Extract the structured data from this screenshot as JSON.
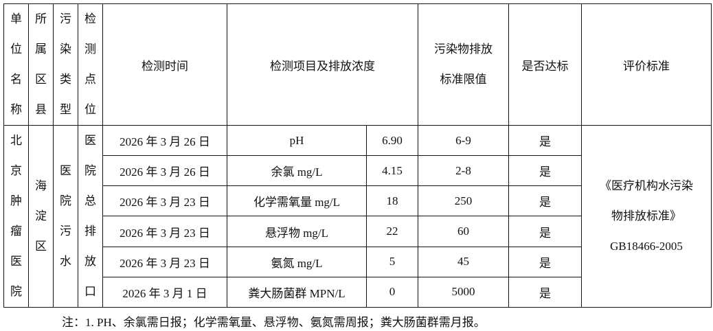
{
  "header": {
    "unit_name": "单位名称",
    "district": "所属区县",
    "pollution_type": "污染类型",
    "monitor_point": "检测点位",
    "time": "检测时间",
    "item_concentration": "检测项目及排放浓度",
    "limit": "污染物排放标准限值",
    "compliant": "是否达标",
    "standard": "评价标准"
  },
  "merged": {
    "unit_name": "北京肿瘤医院",
    "district": "海淀区",
    "pollution_type": "医院污水",
    "monitor_point": "医院总排放口",
    "standard_lines": [
      "《医疗机构水污染",
      "物排放标准》",
      "GB18466-2005"
    ]
  },
  "rows": [
    {
      "time": "2026 年 3 月 26 日",
      "item": "pH",
      "value": "6.90",
      "limit": "6-9",
      "compliant": "是"
    },
    {
      "time": "2026 年 3 月 26 日",
      "item": "余氯 mg/L",
      "value": "4.15",
      "limit": "2-8",
      "compliant": "是"
    },
    {
      "time": "2026 年 3 月 23 日",
      "item": "化学需氧量 mg/L",
      "value": "18",
      "limit": "250",
      "compliant": "是"
    },
    {
      "time": "2026 年 3 月 23 日",
      "item": "悬浮物 mg/L",
      "value": "22",
      "limit": "60",
      "compliant": "是"
    },
    {
      "time": "2026 年 3 月 23 日",
      "item": "氨氮 mg/L",
      "value": "5",
      "limit": "45",
      "compliant": "是"
    },
    {
      "time": "2026 年 3 月 1 日",
      "item": "粪大肠菌群 MPN/L",
      "value": "0",
      "limit": "5000",
      "compliant": "是"
    }
  ],
  "note": "注：1. PH、余氯需日报；化学需氧量、悬浮物、氨氮需周报；粪大肠菌群需月报。"
}
